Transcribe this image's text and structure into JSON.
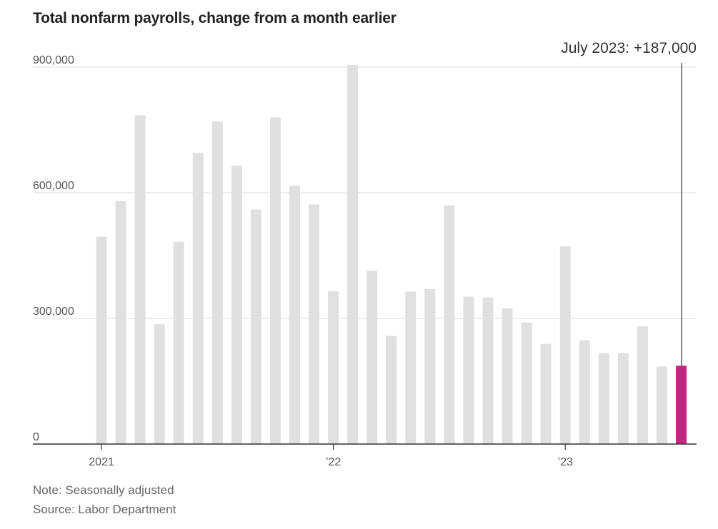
{
  "title": "Total nonfarm payrolls, change from a month earlier",
  "note": "Note: Seasonally adjusted",
  "source": "Source: Labor Department",
  "callout": "July 2023: +187,000",
  "colors": {
    "bar": "#e0e0e0",
    "highlight": "#c2287f",
    "axis": "#333333",
    "grid": "#dddddd"
  },
  "chart_data": {
    "type": "bar",
    "categories": [
      "2021-01",
      "2021-02",
      "2021-03",
      "2021-04",
      "2021-05",
      "2021-06",
      "2021-07",
      "2021-08",
      "2021-09",
      "2021-10",
      "2021-11",
      "2021-12",
      "2022-01",
      "2022-02",
      "2022-03",
      "2022-04",
      "2022-05",
      "2022-06",
      "2022-07",
      "2022-08",
      "2022-09",
      "2022-10",
      "2022-11",
      "2022-12",
      "2023-01",
      "2023-02",
      "2023-03",
      "2023-04",
      "2023-05",
      "2023-06",
      "2023-07"
    ],
    "values": [
      495000,
      580000,
      785000,
      286000,
      483000,
      695000,
      770000,
      665000,
      560000,
      780000,
      617000,
      572000,
      365000,
      905000,
      414000,
      258000,
      364000,
      370000,
      570000,
      352000,
      350000,
      324000,
      290000,
      239000,
      472000,
      248000,
      217000,
      217000,
      281000,
      185000,
      187000
    ],
    "highlight_index": 30,
    "yticks": [
      0,
      300000,
      600000,
      900000
    ],
    "ytick_labels": [
      "0",
      "300,000",
      "600,000",
      "900,000"
    ],
    "xtick_labels": [
      {
        "index": 0,
        "label": "2021"
      },
      {
        "index": 12,
        "label": "’22"
      },
      {
        "index": 24,
        "label": "’23"
      }
    ],
    "ylim": [
      0,
      900000
    ],
    "grid": true
  }
}
